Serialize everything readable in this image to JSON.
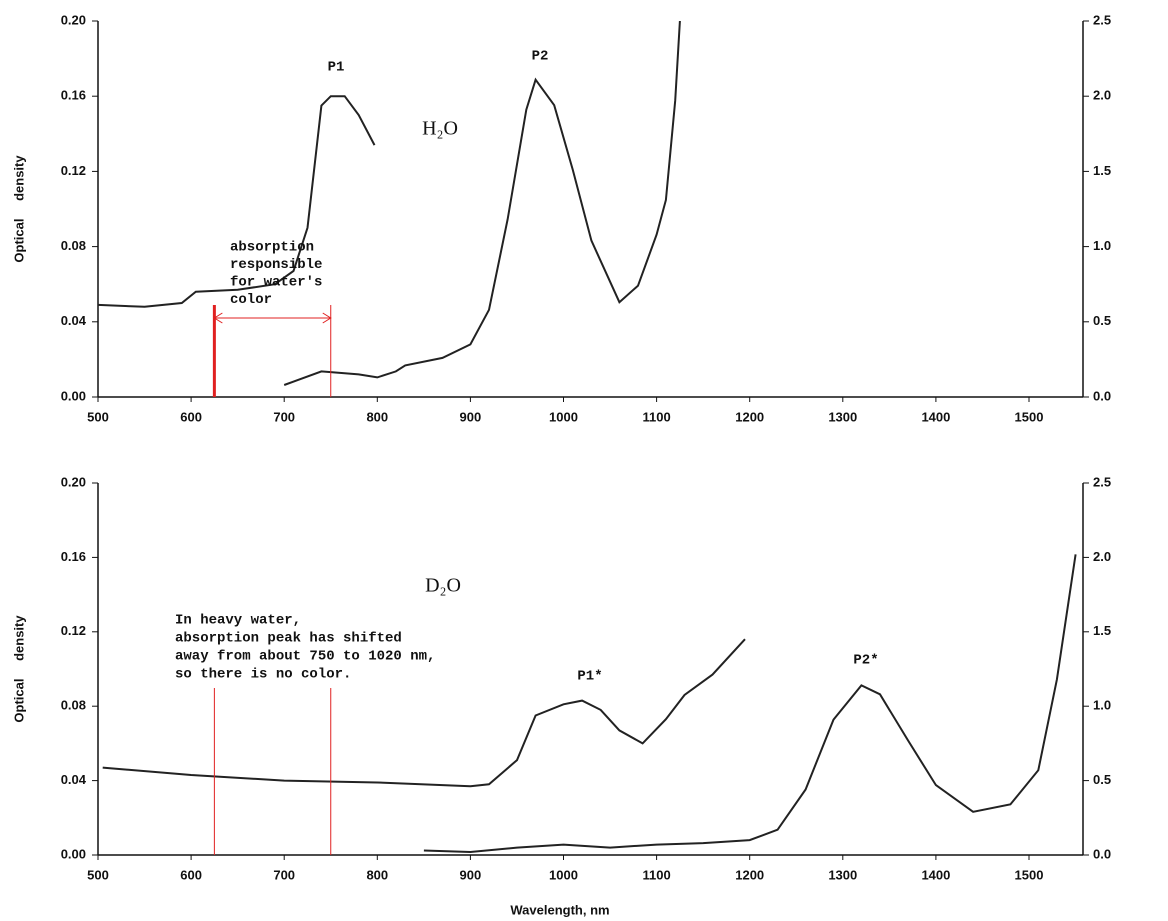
{
  "chart_data": [
    {
      "type": "line",
      "ylabel": "Optical density",
      "xlim": [
        500,
        1558
      ],
      "ylim": [
        0,
        0.2
      ],
      "y2lim": [
        0,
        2.5
      ],
      "xticks": [
        500,
        600,
        700,
        800,
        900,
        1000,
        1100,
        1200,
        1300,
        1400,
        1500
      ],
      "yticks": [
        {
          "value": 0,
          "label": "0.00"
        },
        {
          "value": 0.04,
          "label": "0.04"
        },
        {
          "value": 0.08,
          "label": "0.08"
        },
        {
          "value": 0.12,
          "label": "0.12"
        },
        {
          "value": 0.16,
          "label": "0.16"
        },
        {
          "value": 0.2,
          "label": "0.20"
        }
      ],
      "y2ticks": [
        {
          "value": 0,
          "label": "0.0"
        },
        {
          "value": 0.5,
          "label": "0.5"
        },
        {
          "value": 1,
          "label": "1.0"
        },
        {
          "value": 1.5,
          "label": "1.5"
        },
        {
          "value": 2,
          "label": "2.0"
        },
        {
          "value": 2.5,
          "label": "2.5"
        }
      ],
      "series": [
        {
          "color": "#222222",
          "x": [
            500,
            550,
            590,
            605,
            650,
            690,
            710,
            725,
            740,
            750,
            765,
            780,
            797
          ],
          "values": [
            0.049,
            0.048,
            0.05,
            0.056,
            0.057,
            0.06,
            0.067,
            0.09,
            0.155,
            0.16,
            0.16,
            0.15,
            0.134
          ]
        },
        {
          "color": "#222222",
          "axis": "y2",
          "x": [
            700,
            740,
            780,
            800,
            820,
            830,
            870,
            900,
            920,
            940,
            960,
            970,
            990,
            1010,
            1030,
            1060,
            1080,
            1100,
            1110,
            1120,
            1125
          ],
          "values": [
            0.08,
            0.17,
            0.15,
            0.13,
            0.17,
            0.21,
            0.26,
            0.35,
            0.58,
            1.18,
            1.91,
            2.11,
            1.94,
            1.51,
            1.04,
            0.63,
            0.74,
            1.08,
            1.31,
            1.97,
            2.5
          ]
        }
      ],
      "compound": "H₂O",
      "peaks": [
        "P1",
        "P2"
      ],
      "reference_lines": [
        625,
        750
      ],
      "reference_color": "#e02020",
      "note": [
        "absorption",
        "responsible",
        "for water's",
        "color"
      ]
    },
    {
      "type": "line",
      "ylabel": "Optical density",
      "xlabel": "Wavelength,  nm",
      "xlim": [
        500,
        1558
      ],
      "ylim": [
        0,
        0.2
      ],
      "y2lim": [
        0,
        2.5
      ],
      "xticks": [
        500,
        600,
        700,
        800,
        900,
        1000,
        1100,
        1200,
        1300,
        1400,
        1500
      ],
      "yticks": [
        {
          "value": 0,
          "label": "0.00"
        },
        {
          "value": 0.04,
          "label": "0.04"
        },
        {
          "value": 0.08,
          "label": "0.08"
        },
        {
          "value": 0.12,
          "label": "0.12"
        },
        {
          "value": 0.16,
          "label": "0.16"
        },
        {
          "value": 0.2,
          "label": "0.20"
        }
      ],
      "y2ticks": [
        {
          "value": 0,
          "label": "0.0"
        },
        {
          "value": 0.5,
          "label": "0.5"
        },
        {
          "value": 1,
          "label": "1.0"
        },
        {
          "value": 1.5,
          "label": "1.5"
        },
        {
          "value": 2,
          "label": "2.0"
        },
        {
          "value": 2.5,
          "label": "2.5"
        }
      ],
      "series": [
        {
          "color": "#222222",
          "x": [
            505,
            600,
            700,
            800,
            900,
            920,
            950,
            970,
            1000,
            1020,
            1040,
            1060,
            1085,
            1110,
            1130,
            1160,
            1195
          ],
          "values": [
            0.047,
            0.043,
            0.04,
            0.039,
            0.037,
            0.038,
            0.051,
            0.075,
            0.081,
            0.083,
            0.078,
            0.067,
            0.06,
            0.073,
            0.086,
            0.097,
            0.116
          ]
        },
        {
          "color": "#222222",
          "axis": "y2",
          "x": [
            850,
            900,
            950,
            1000,
            1050,
            1100,
            1150,
            1200,
            1230,
            1260,
            1290,
            1320,
            1340,
            1370,
            1400,
            1440,
            1480,
            1510,
            1530,
            1550
          ],
          "values": [
            0.03,
            0.02,
            0.05,
            0.07,
            0.05,
            0.07,
            0.08,
            0.1,
            0.17,
            0.44,
            0.91,
            1.14,
            1.08,
            0.77,
            0.47,
            0.29,
            0.34,
            0.57,
            1.18,
            2.02
          ]
        }
      ],
      "compound": "D₂O",
      "peaks": [
        "P1*",
        "P2*"
      ],
      "reference_lines": [
        625,
        750
      ],
      "reference_color": "#e02020",
      "note": [
        "In heavy water,",
        "absorption peak has shifted",
        "away from about 750 to 1020 nm,",
        "so there is no color."
      ]
    }
  ]
}
